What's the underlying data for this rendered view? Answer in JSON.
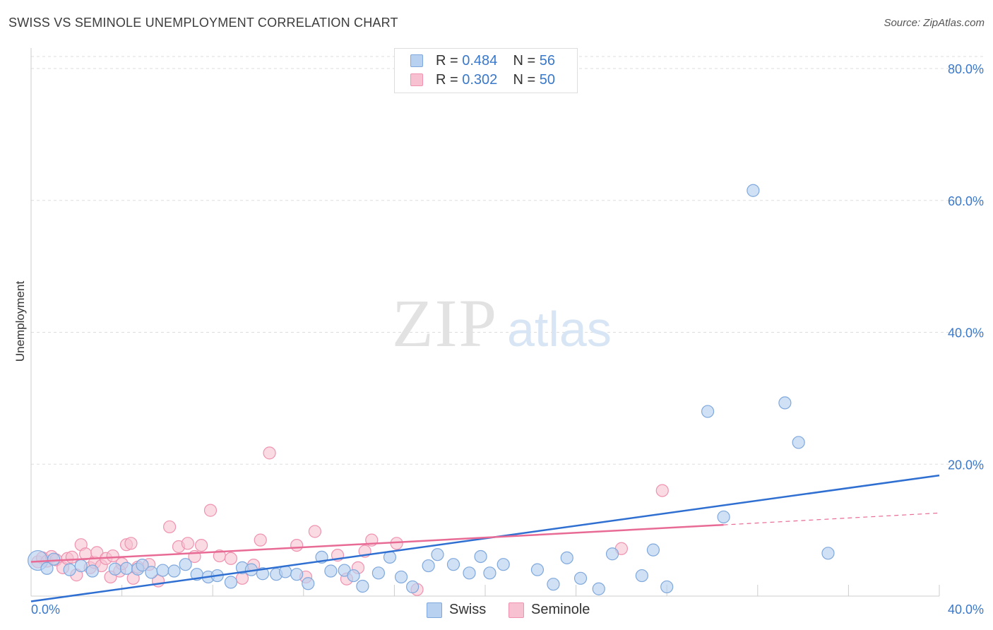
{
  "title": "SWISS VS SEMINOLE UNEMPLOYMENT CORRELATION CHART",
  "source": "Source: ZipAtlas.com",
  "colors": {
    "swiss_fill": "#b9d1f0",
    "swiss_stroke": "#7fa8dc",
    "swiss_line": "#2f6fd1",
    "seminole_fill": "#f7c1d1",
    "seminole_stroke": "#ef93b0",
    "seminole_line": "#e86b95",
    "value_text": "#3a78c9",
    "grid": "#dddddd"
  },
  "legend": {
    "swiss": {
      "r_label": "R = ",
      "r_value": "0.484",
      "n_label": "N = ",
      "n_value": "56"
    },
    "seminole": {
      "r_label": "R = ",
      "r_value": "0.302",
      "n_label": "N = ",
      "n_value": "50"
    }
  },
  "chart_data": {
    "type": "scatter",
    "title": "SWISS VS SEMINOLE UNEMPLOYMENT CORRELATION CHART",
    "xlabel": "",
    "ylabel": "Unemployment",
    "xlim": [
      0,
      40
    ],
    "ylim": [
      0,
      80
    ],
    "x_tick_labels": [
      "0.0%",
      "40.0%"
    ],
    "y_ticks": [
      20,
      40,
      60,
      80
    ],
    "y_tick_labels": [
      "20.0%",
      "40.0%",
      "60.0%",
      "80.0%"
    ],
    "watermark": {
      "zip": "ZIP",
      "atlas": "atlas"
    },
    "series": [
      {
        "name": "Swiss",
        "trend": {
          "x0": 0,
          "y0": -0.8,
          "x1": 40,
          "y1": 18.3
        },
        "points": [
          [
            0.3,
            5.4
          ],
          [
            0.7,
            4.2
          ],
          [
            1.0,
            5.6
          ],
          [
            1.7,
            4.0
          ],
          [
            2.2,
            4.6
          ],
          [
            2.7,
            3.8
          ],
          [
            3.7,
            4.1
          ],
          [
            4.2,
            4.2
          ],
          [
            4.7,
            4.1
          ],
          [
            4.9,
            4.7
          ],
          [
            5.3,
            3.6
          ],
          [
            5.8,
            3.9
          ],
          [
            6.3,
            3.8
          ],
          [
            6.8,
            4.8
          ],
          [
            7.3,
            3.3
          ],
          [
            7.8,
            2.9
          ],
          [
            8.2,
            3.1
          ],
          [
            8.8,
            2.1
          ],
          [
            9.3,
            4.3
          ],
          [
            9.7,
            4.0
          ],
          [
            10.2,
            3.4
          ],
          [
            10.8,
            3.3
          ],
          [
            11.2,
            3.7
          ],
          [
            11.7,
            3.3
          ],
          [
            12.2,
            1.9
          ],
          [
            12.8,
            5.9
          ],
          [
            13.2,
            3.8
          ],
          [
            13.8,
            3.9
          ],
          [
            14.2,
            3.1
          ],
          [
            14.6,
            1.5
          ],
          [
            15.3,
            3.5
          ],
          [
            15.8,
            5.9
          ],
          [
            16.3,
            2.9
          ],
          [
            16.8,
            1.4
          ],
          [
            17.5,
            4.6
          ],
          [
            17.9,
            6.3
          ],
          [
            18.6,
            4.8
          ],
          [
            19.3,
            3.5
          ],
          [
            19.8,
            6.0
          ],
          [
            20.2,
            3.5
          ],
          [
            20.8,
            4.8
          ],
          [
            22.3,
            4.0
          ],
          [
            23.0,
            1.8
          ],
          [
            23.6,
            5.8
          ],
          [
            24.2,
            2.7
          ],
          [
            25.0,
            1.1
          ],
          [
            25.6,
            6.4
          ],
          [
            26.9,
            3.1
          ],
          [
            27.4,
            7.0
          ],
          [
            28.0,
            1.4
          ],
          [
            29.8,
            28.0
          ],
          [
            30.5,
            12.0
          ],
          [
            31.8,
            61.5
          ],
          [
            33.2,
            29.3
          ],
          [
            33.8,
            23.3
          ],
          [
            35.1,
            6.5
          ]
        ]
      },
      {
        "name": "Seminole",
        "trend": {
          "x0": 0,
          "y0": 5.2,
          "x1": 30.5,
          "y1": 10.8
        },
        "trend_ext": {
          "x0": 30.5,
          "y0": 10.8,
          "x1": 40,
          "y1": 12.6
        },
        "points": [
          [
            0.3,
            5.2
          ],
          [
            0.5,
            5.8
          ],
          [
            0.7,
            5.3
          ],
          [
            0.9,
            6.0
          ],
          [
            1.1,
            5.5
          ],
          [
            1.4,
            4.3
          ],
          [
            1.6,
            5.7
          ],
          [
            1.8,
            5.9
          ],
          [
            2.0,
            3.2
          ],
          [
            2.2,
            7.8
          ],
          [
            2.4,
            6.4
          ],
          [
            2.6,
            4.3
          ],
          [
            2.8,
            5.1
          ],
          [
            2.9,
            6.6
          ],
          [
            3.1,
            4.6
          ],
          [
            3.3,
            5.7
          ],
          [
            3.5,
            2.9
          ],
          [
            3.6,
            6.1
          ],
          [
            3.9,
            3.8
          ],
          [
            4.0,
            4.9
          ],
          [
            4.2,
            7.8
          ],
          [
            4.4,
            8.0
          ],
          [
            4.5,
            2.7
          ],
          [
            4.7,
            4.4
          ],
          [
            5.2,
            4.8
          ],
          [
            5.6,
            2.3
          ],
          [
            6.1,
            10.5
          ],
          [
            6.5,
            7.5
          ],
          [
            6.9,
            8.0
          ],
          [
            7.2,
            6.0
          ],
          [
            7.5,
            7.7
          ],
          [
            7.9,
            13.0
          ],
          [
            8.3,
            6.1
          ],
          [
            8.8,
            5.7
          ],
          [
            9.3,
            2.7
          ],
          [
            9.8,
            4.7
          ],
          [
            10.1,
            8.5
          ],
          [
            10.5,
            21.7
          ],
          [
            11.7,
            7.7
          ],
          [
            12.1,
            2.9
          ],
          [
            12.5,
            9.8
          ],
          [
            13.5,
            6.2
          ],
          [
            13.9,
            2.6
          ],
          [
            14.4,
            4.3
          ],
          [
            14.7,
            6.8
          ],
          [
            15.0,
            8.5
          ],
          [
            16.1,
            8.0
          ],
          [
            17.0,
            1.0
          ],
          [
            26.0,
            7.2
          ],
          [
            27.8,
            16.0
          ]
        ]
      }
    ]
  },
  "bottom_legend": {
    "swiss": "Swiss",
    "seminole": "Seminole"
  }
}
